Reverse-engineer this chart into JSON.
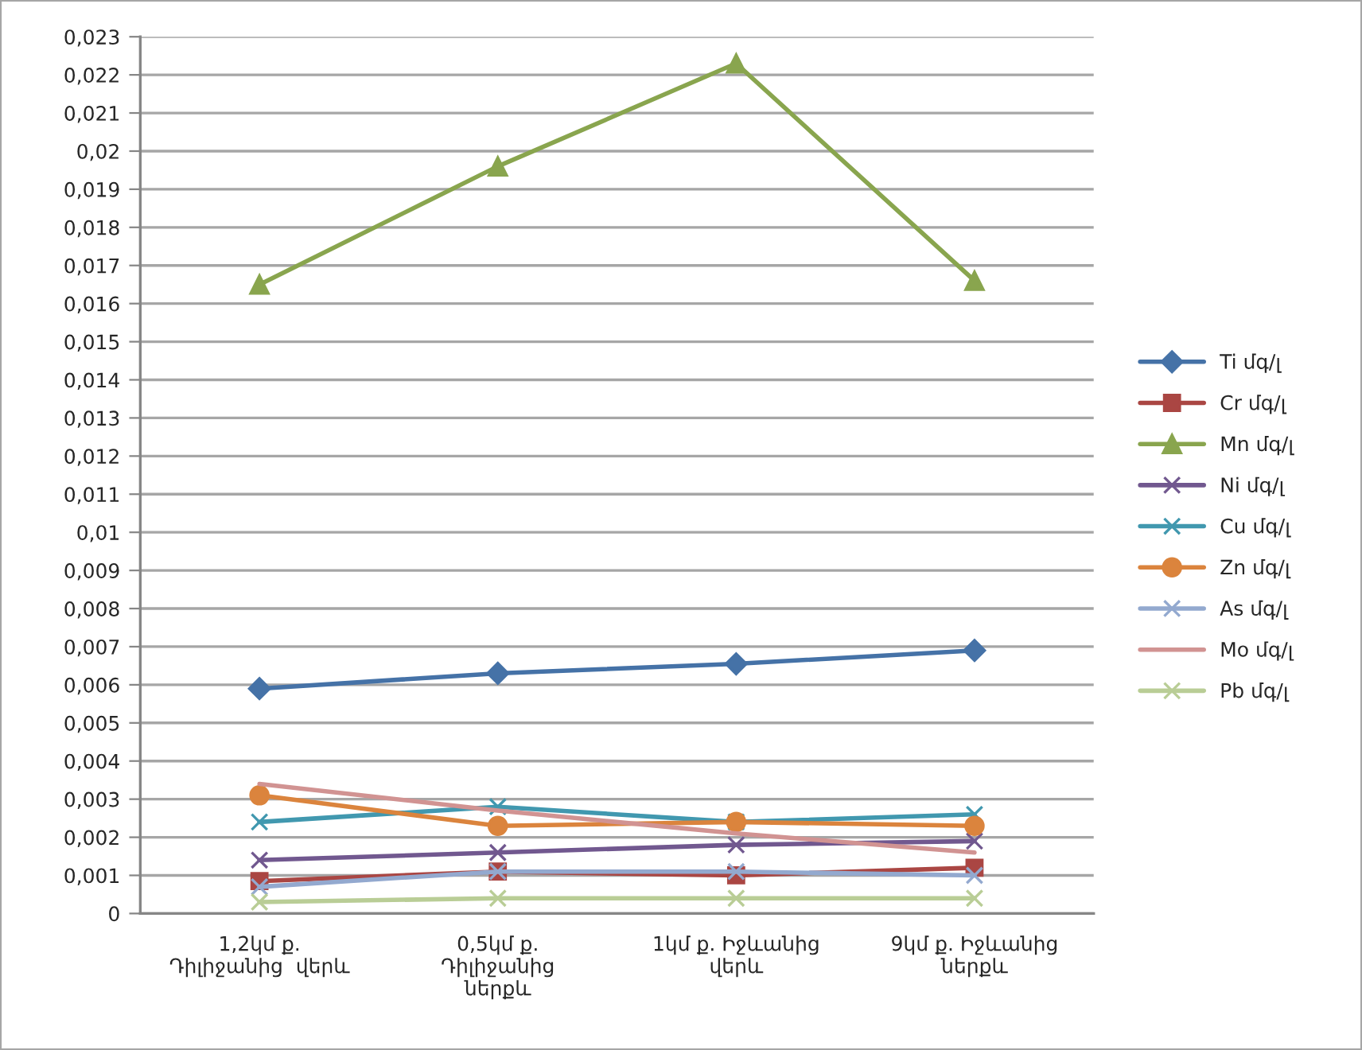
{
  "chart_data": {
    "type": "line",
    "categories": [
      "1,2կմ ք.\nԴիլիջանից  վերև",
      "0,5կմ ք.\nԴիլիջանից\nներքև",
      "1կմ ք. Իջևանից\nվերև",
      "9կմ ք. Իջևանից\nներքև"
    ],
    "series": [
      {
        "name": "Ti մգ/լ",
        "color": "#4572a7",
        "marker": "diamond",
        "values": [
          0.0059,
          0.0063,
          0.00655,
          0.0069
        ]
      },
      {
        "name": "Cr մգ/լ",
        "color": "#aa4643",
        "marker": "square",
        "values": [
          0.00085,
          0.0011,
          0.001,
          0.0012
        ]
      },
      {
        "name": "Mn մգ/լ",
        "color": "#89a54e",
        "marker": "triangle",
        "values": [
          0.0165,
          0.0196,
          0.0223,
          0.0166
        ]
      },
      {
        "name": "Ni մգ/լ",
        "color": "#71588f",
        "marker": "cross",
        "values": [
          0.0014,
          0.0016,
          0.0018,
          0.0019
        ]
      },
      {
        "name": "Cu մգ/լ",
        "color": "#4198af",
        "marker": "cross",
        "values": [
          0.0024,
          0.0028,
          0.0024,
          0.0026
        ]
      },
      {
        "name": "Zn մգ/լ",
        "color": "#db843d",
        "marker": "circle",
        "values": [
          0.0031,
          0.0023,
          0.0024,
          0.0023
        ]
      },
      {
        "name": "As մգ/լ",
        "color": "#93a9cf",
        "marker": "cross",
        "values": [
          0.0007,
          0.0011,
          0.0011,
          0.001
        ]
      },
      {
        "name": "Mo մգ/լ",
        "color": "#d19392",
        "marker": "none",
        "values": [
          0.0034,
          0.0027,
          0.0021,
          0.0016
        ]
      },
      {
        "name": "Pb մգ/լ",
        "color": "#b9cd96",
        "marker": "cross",
        "values": [
          0.0003,
          0.0004,
          0.0004,
          0.0004
        ]
      }
    ],
    "ylim": [
      0,
      0.023
    ],
    "yticks": [
      0,
      {
        "value": 0.001,
        "label": "0,001"
      },
      {
        "value": 0.002,
        "label": "0,002"
      },
      {
        "value": 0.003,
        "label": "0,003"
      },
      {
        "value": 0.004,
        "label": "0,004"
      },
      {
        "value": 0.005,
        "label": "0,005"
      },
      {
        "value": 0.006,
        "label": "0,006"
      },
      {
        "value": 0.007,
        "label": "0,007"
      },
      {
        "value": 0.008,
        "label": "0,008"
      },
      {
        "value": 0.009,
        "label": "0,009"
      },
      {
        "value": 0.01,
        "label": "0,01"
      },
      {
        "value": 0.011,
        "label": "0,011"
      },
      {
        "value": 0.012,
        "label": "0,012"
      },
      {
        "value": 0.013,
        "label": "0,013"
      },
      {
        "value": 0.014,
        "label": "0,014"
      },
      {
        "value": 0.015,
        "label": "0,015"
      },
      {
        "value": 0.016,
        "label": "0,016"
      },
      {
        "value": 0.017,
        "label": "0,017"
      },
      {
        "value": 0.018,
        "label": "0,018"
      },
      {
        "value": 0.019,
        "label": "0,019"
      },
      {
        "value": 0.02,
        "label": "0,02"
      },
      {
        "value": 0.021,
        "label": "0,021"
      },
      {
        "value": 0.022,
        "label": "0,022"
      },
      {
        "value": 0.023,
        "label": "0,023"
      }
    ],
    "grid": "y",
    "legend": "right",
    "line_style": "solid"
  }
}
